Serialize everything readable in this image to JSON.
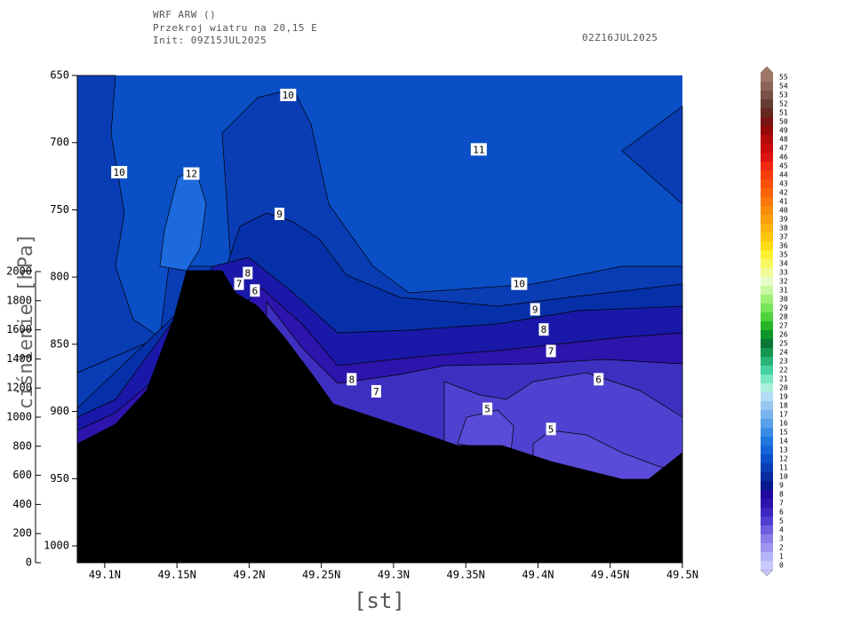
{
  "chart_data": {
    "type": "contour",
    "title": [
      "WRF ARW ()",
      "Przekroj wiatru na 20,15 E",
      "Init: 09Z15JUL2025"
    ],
    "valid_time": "02Z16JUL2025",
    "x_label": "[st]",
    "y_label": "ciśnienie [hPa]",
    "xlim": [
      49.081,
      49.5
    ],
    "xticks": [
      {
        "value": 49.1,
        "label": "49.1N"
      },
      {
        "value": 49.15,
        "label": "49.15N"
      },
      {
        "value": 49.2,
        "label": "49.2N"
      },
      {
        "value": 49.25,
        "label": "49.25N"
      },
      {
        "value": 49.3,
        "label": "49.3N"
      },
      {
        "value": 49.35,
        "label": "49.35N"
      },
      {
        "value": 49.4,
        "label": "49.4N"
      },
      {
        "value": 49.45,
        "label": "49.45N"
      },
      {
        "value": 49.5,
        "label": "49.5N"
      }
    ],
    "ylim": [
      650,
      1012.5
    ],
    "yticks": [
      650,
      700,
      750,
      800,
      850,
      900,
      950,
      1000
    ],
    "y2lim": [
      0,
      2000
    ],
    "y2ticks": [
      0,
      200,
      400,
      600,
      800,
      1000,
      1200,
      1400,
      1600,
      1800,
      2000
    ],
    "contour_labels": [
      {
        "value": 10,
        "x": 49.227,
        "y": 664.5
      },
      {
        "value": 12,
        "x": 49.16,
        "y": 723
      },
      {
        "value": 10,
        "x": 49.11,
        "y": 722
      },
      {
        "value": 11,
        "x": 49.359,
        "y": 705
      },
      {
        "value": 9,
        "x": 49.221,
        "y": 753
      },
      {
        "value": 8,
        "x": 49.199,
        "y": 797
      },
      {
        "value": 7,
        "x": 49.193,
        "y": 805
      },
      {
        "value": 6,
        "x": 49.204,
        "y": 810
      },
      {
        "value": 10,
        "x": 49.387,
        "y": 805
      },
      {
        "value": 9,
        "x": 49.398,
        "y": 824
      },
      {
        "value": 8,
        "x": 49.404,
        "y": 839
      },
      {
        "value": 7,
        "x": 49.409,
        "y": 855
      },
      {
        "value": 6,
        "x": 49.442,
        "y": 876
      },
      {
        "value": 8,
        "x": 49.271,
        "y": 876
      },
      {
        "value": 7,
        "x": 49.288,
        "y": 885
      },
      {
        "value": 5,
        "x": 49.365,
        "y": 898
      },
      {
        "value": 5,
        "x": 49.409,
        "y": 913
      }
    ],
    "colorbar": {
      "levels": [
        0,
        1,
        2,
        3,
        4,
        5,
        6,
        7,
        8,
        9,
        10,
        11,
        12,
        13,
        14,
        15,
        16,
        17,
        18,
        19,
        20,
        21,
        22,
        23,
        24,
        25,
        26,
        27,
        28,
        29,
        30,
        31,
        32,
        33,
        34,
        35,
        36,
        37,
        38,
        39,
        40,
        41,
        42,
        43,
        44,
        45,
        46,
        47,
        48,
        49,
        50,
        51,
        52,
        53,
        54,
        55
      ],
      "colors": [
        "#c8c8ff",
        "#b4b4f8",
        "#a096f0",
        "#8c7ee8",
        "#6e5ee0",
        "#5040d0",
        "#3c28c0",
        "#2c14ac",
        "#1e0a9c",
        "#0a1a8c",
        "#0a2aa0",
        "#0a3cb4",
        "#0a50c8",
        "#1464d8",
        "#1e78e0",
        "#3c8ce6",
        "#5aa0ea",
        "#78b4ee",
        "#96c8f2",
        "#b4dcf6",
        "#aaf0dc",
        "#78e6c0",
        "#46d2a0",
        "#28b478",
        "#169650",
        "#0a7832",
        "#0a9628",
        "#28b428",
        "#50d23c",
        "#78e65a",
        "#a0f078",
        "#c8f8a0",
        "#e6fcc8",
        "#f0fa96",
        "#f8f864",
        "#fcf032",
        "#fcdc14",
        "#fcc80a",
        "#fcb40a",
        "#fca00a",
        "#fc8c0a",
        "#fc780a",
        "#fc640a",
        "#fc500a",
        "#fc3c0a",
        "#f02814",
        "#dc1414",
        "#c80a0a",
        "#b40a0a",
        "#960a0a",
        "#781414",
        "#64281e",
        "#643c32",
        "#785046",
        "#8c6458",
        "#a07868"
      ]
    }
  }
}
